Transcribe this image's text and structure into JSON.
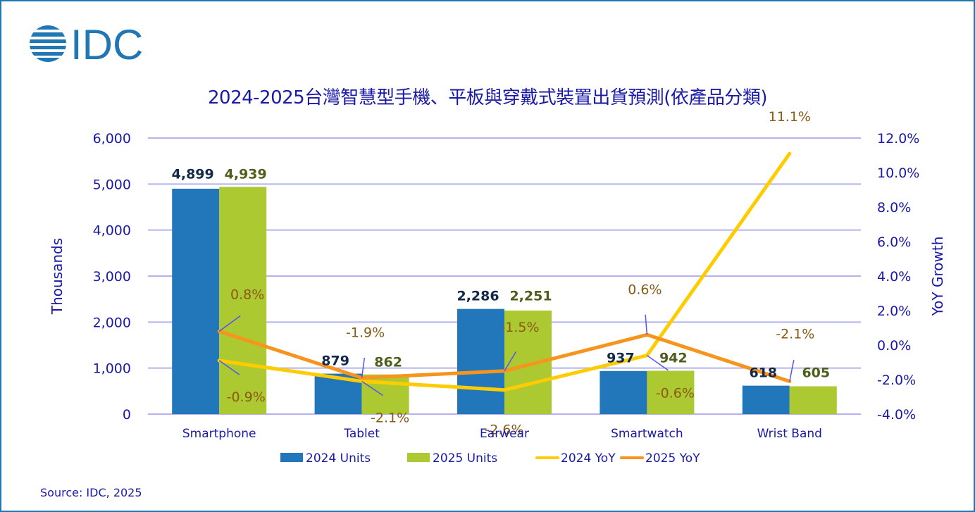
{
  "logo": {
    "text": "IDC",
    "color": "#1f77b4"
  },
  "source": "Source: IDC, 2025",
  "colors": {
    "units_2024": "#2277bb",
    "units_2025": "#adc932",
    "yoy_2024": "#ffcc00",
    "yoy_2025": "#f7941d",
    "grid": "#b3b3ee",
    "leader": "#5555ee",
    "label_2024": "#12294a",
    "label_2025": "#4f5e1a"
  },
  "chart_data": {
    "type": "bar",
    "title": "2024-2025台灣智慧型手機、平板與穿戴式裝置出貨預測(依產品分類)",
    "xlabel": "",
    "ylabel": "Thousands",
    "y2label": "YoY Growth",
    "categories": [
      "Smartphone",
      "Tablet",
      "Earwear",
      "Smartwatch",
      "Wrist Band"
    ],
    "ylim": [
      0,
      6000
    ],
    "yticks": [
      "0",
      "1,000",
      "2,000",
      "3,000",
      "4,000",
      "5,000",
      "6,000"
    ],
    "y2lim": [
      -4.0,
      12.0
    ],
    "y2ticks": [
      "-4.0%",
      "-2.0%",
      "0.0%",
      "2.0%",
      "4.0%",
      "6.0%",
      "8.0%",
      "10.0%",
      "12.0%"
    ],
    "grid": true,
    "legend_position": "bottom",
    "series": [
      {
        "name": "2024 Units",
        "kind": "bar",
        "axis": "left",
        "values": [
          4899,
          879,
          2286,
          937,
          618
        ],
        "labels": [
          "4,899",
          "879",
          "2,286",
          "937",
          "618"
        ]
      },
      {
        "name": "2025 Units",
        "kind": "bar",
        "axis": "left",
        "values": [
          4939,
          862,
          2251,
          942,
          605
        ],
        "labels": [
          "4,939",
          "862",
          "2,251",
          "942",
          "605"
        ]
      },
      {
        "name": "2024 YoY",
        "kind": "line",
        "axis": "right",
        "values": [
          -0.9,
          -2.1,
          -2.6,
          -0.6,
          11.1
        ],
        "labels": [
          "-0.9%",
          "-2.1%",
          "-2.6%",
          "-0.6%",
          "11.1%"
        ]
      },
      {
        "name": "2025 YoY",
        "kind": "line",
        "axis": "right",
        "values": [
          0.8,
          -1.9,
          -1.5,
          0.6,
          -2.1
        ],
        "labels": [
          "0.8%",
          "-1.9%",
          "-1.5%",
          "0.6%",
          "-2.1%"
        ]
      }
    ]
  }
}
